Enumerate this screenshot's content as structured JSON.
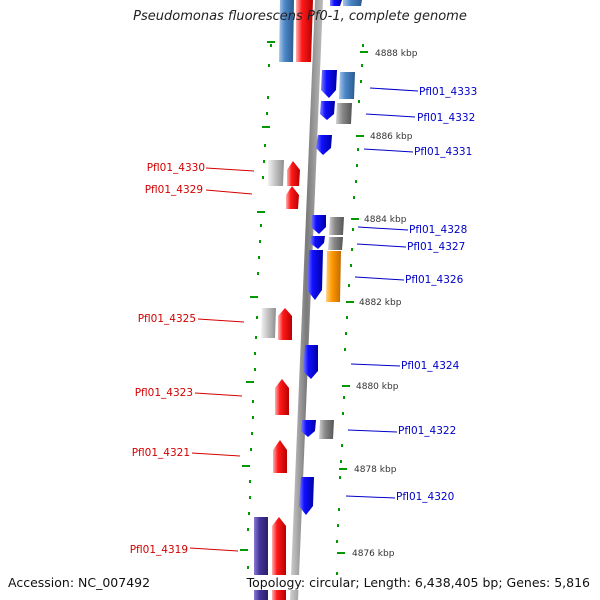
{
  "title": "Pseudomonas fluorescens Pf0-1, complete genome",
  "accession": "Accession: NC_007492",
  "topology": "Topology: circular; Length: 6,438,405 bp; Genes: 5,816",
  "colors": {
    "forward": "#ff0000",
    "reverse": "#0000ff",
    "steel": "#4a7fbf",
    "gray": "#888888",
    "orange": "#ff9900",
    "purple": "#443399",
    "tick": "#009900",
    "backbone": "#888888"
  },
  "scale_labels": [
    "4888 kbp",
    "4886 kbp",
    "4884 kbp",
    "4882 kbp",
    "4880 kbp",
    "4878 kbp",
    "4876 kbp"
  ],
  "left_genes": [
    "Pfl01_4330",
    "Pfl01_4329",
    "Pfl01_4325",
    "Pfl01_4323",
    "Pfl01_4321",
    "Pfl01_4319"
  ],
  "right_genes": [
    "Pfl01_4333",
    "Pfl01_4332",
    "Pfl01_4331",
    "Pfl01_4328",
    "Pfl01_4327",
    "Pfl01_4326",
    "Pfl01_4324",
    "Pfl01_4322",
    "Pfl01_4320"
  ]
}
